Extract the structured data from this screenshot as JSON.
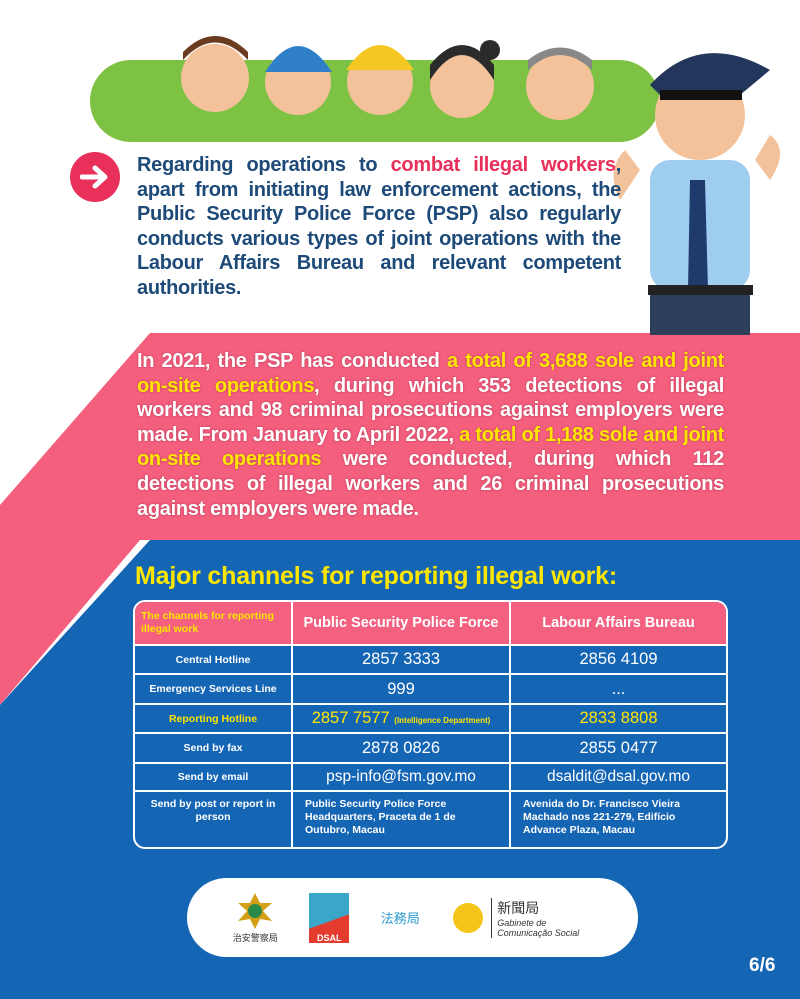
{
  "colors": {
    "navy_text": "#1d4a78",
    "accent_pink": "#e8305a",
    "pink_band": "#f45f7e",
    "blue_band": "#1565b5",
    "highlight_yellow": "#ffe600",
    "green_banner": "#7dc242"
  },
  "intro": {
    "icon": "arrow-right-icon",
    "segments": [
      {
        "text": "Regarding operations to ",
        "hl": ""
      },
      {
        "text": "combat illegal workers",
        "hl": "pink"
      },
      {
        "text": ", apart from initiating law enforcement actions, the Public Security Police Force (PSP) also regularly conducts various types of joint operations with the Labour Affairs Bureau and relevant competent authorities.",
        "hl": ""
      }
    ]
  },
  "stats": {
    "segments": [
      {
        "text": "In 2021, the PSP has conducted ",
        "hl": ""
      },
      {
        "text": "a total of 3,688 sole and joint on-site operations",
        "hl": "yellow"
      },
      {
        "text": ", during which 353 detections of illegal workers and 98 criminal prosecutions against employers were made. From January to April 2022, ",
        "hl": ""
      },
      {
        "text": "a total of 1,188 sole and joint on-site operations",
        "hl": "yellow"
      },
      {
        "text": " were conducted, during which 112 detections of illegal workers and 26 criminal prosecutions against employers were made.",
        "hl": ""
      }
    ]
  },
  "channels": {
    "title": "Major channels for reporting illegal work:",
    "headers": [
      "The channels for reporting illegal work",
      "Public Security Police Force",
      "Labour Affairs Bureau"
    ],
    "rows": [
      {
        "label": "Central Hotline",
        "psp": "2857 3333",
        "dsal": "2856 4109"
      },
      {
        "label": "Emergency Services Line",
        "psp": "999",
        "dsal": "..."
      },
      {
        "label": "Reporting Hotline",
        "psp": "2857 7577",
        "psp_note": "(Intelligence Department)",
        "dsal": "2833 8808"
      },
      {
        "label": "Send by fax",
        "psp": "2878 0826",
        "dsal": "2855 0477"
      },
      {
        "label": "Send by email",
        "psp": "psp-info@fsm.gov.mo",
        "dsal": "dsaldit@dsal.gov.mo"
      },
      {
        "label": "Send by post or report in person",
        "psp": "Public Security Police Force Headquarters, Praceta de 1 de Outubro, Macau",
        "dsal": "Avenida do Dr. Francisco Vieira Machado nos 221-279, Edifício Advance Plaza, Macau"
      }
    ]
  },
  "footer": {
    "logos": [
      {
        "name": "psp-logo",
        "text": "治安警察局"
      },
      {
        "name": "dsal-logo",
        "text": "DSAL"
      },
      {
        "name": "dsaj-logo",
        "text": "法務局"
      },
      {
        "name": "gcs-logo",
        "text": "新聞局",
        "sub": "Gabinete de Comunicação Social"
      }
    ]
  },
  "page_indicator": "6/6"
}
